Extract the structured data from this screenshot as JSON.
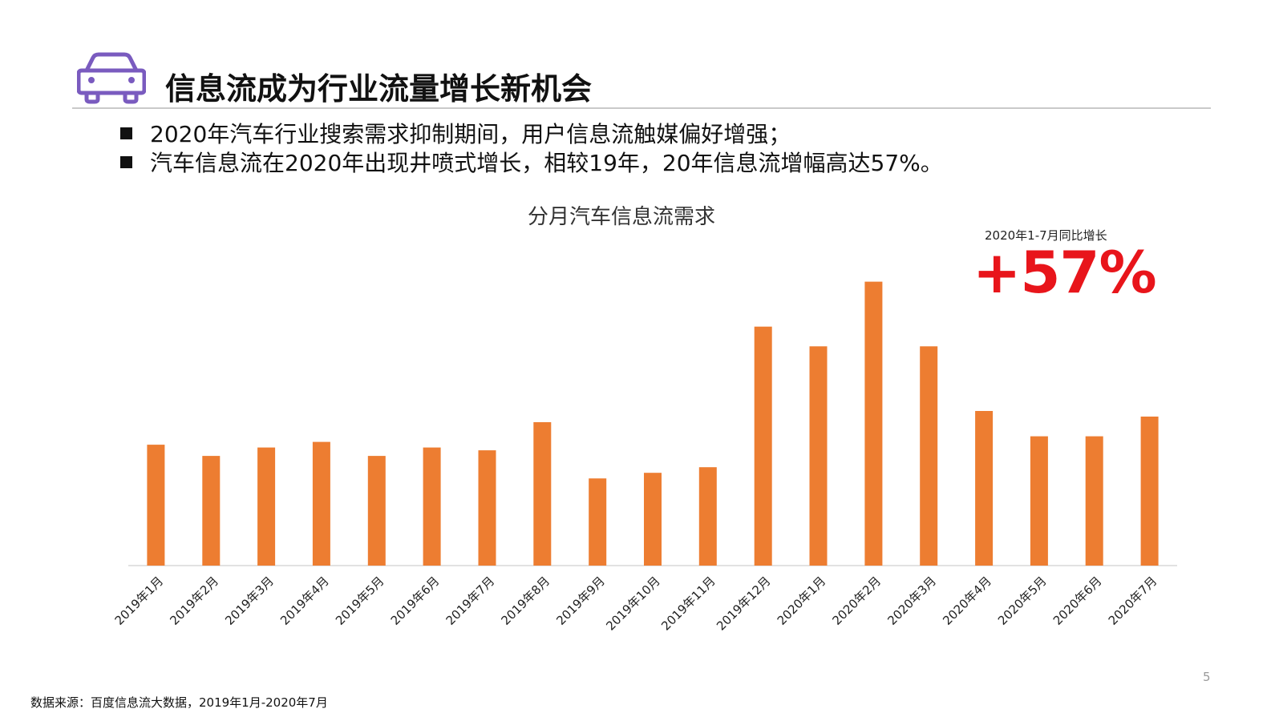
{
  "header": {
    "title": "信息流成为行业流量增长新机会"
  },
  "bullets": [
    "2020年汽车行业搜索需求抑制期间，用户信息流触媒偏好增强；",
    "汽车信息流在2020年出现井喷式增长，相较19年，20年信息流增幅高达57%。"
  ],
  "callout": {
    "label": "2020年1-7月同比增长",
    "value": "+57%",
    "color": "#e8151b"
  },
  "chart_data": {
    "type": "bar",
    "title": "分月汽车信息流需求",
    "categories": [
      "2019年1月",
      "2019年2月",
      "2019年3月",
      "2019年4月",
      "2019年5月",
      "2019年6月",
      "2019年7月",
      "2019年8月",
      "2019年9月",
      "2019年10月",
      "2019年11月",
      "2019年12月",
      "2020年1月",
      "2020年2月",
      "2020年3月",
      "2020年4月",
      "2020年5月",
      "2020年6月",
      "2020年7月"
    ],
    "values": [
      43,
      39,
      42,
      44,
      39,
      42,
      41,
      51,
      31,
      33,
      35,
      85,
      78,
      101,
      78,
      55,
      46,
      46,
      53
    ],
    "ylim": [
      0,
      110
    ],
    "y_axis_visible": false,
    "grid": false,
    "bar_color": "#ed7d31",
    "axis_color": "#d9d9d9"
  },
  "footer": {
    "page_number": "5",
    "source": "数据来源：百度信息流大数据，2019年1月-2020年7月"
  },
  "icons": {
    "header_icon": "car-icon"
  }
}
